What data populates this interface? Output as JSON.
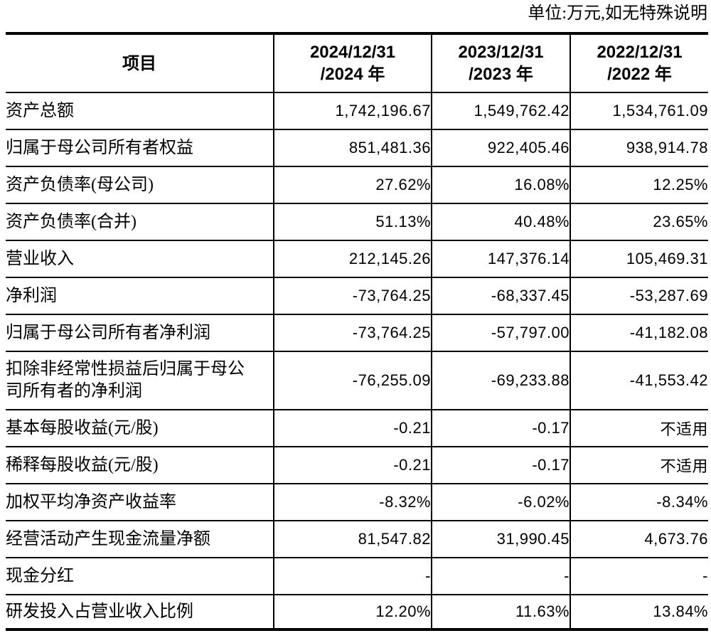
{
  "unit_note": "单位:万元,如无特殊说明",
  "header": {
    "item": "项目",
    "y2024": "2024/12/31\n/2024 年",
    "y2023": "2023/12/31\n/2023 年",
    "y2022": "2022/12/31\n/2022 年"
  },
  "rows": [
    {
      "label": "资产总额",
      "y2024": "1,742,196.67",
      "y2023": "1,549,762.42",
      "y2022": "1,534,761.09"
    },
    {
      "label": "归属于母公司所有者权益",
      "y2024": "851,481.36",
      "y2023": "922,405.46",
      "y2022": "938,914.78"
    },
    {
      "label": "资产负债率(母公司)",
      "y2024": "27.62%",
      "y2023": "16.08%",
      "y2022": "12.25%"
    },
    {
      "label": "资产负债率(合并)",
      "y2024": "51.13%",
      "y2023": "40.48%",
      "y2022": "23.65%"
    },
    {
      "label": "营业收入",
      "y2024": "212,145.26",
      "y2023": "147,376.14",
      "y2022": "105,469.31"
    },
    {
      "label": "净利润",
      "y2024": "-73,764.25",
      "y2023": "-68,337.45",
      "y2022": "-53,287.69"
    },
    {
      "label": "归属于母公司所有者净利润",
      "y2024": "-73,764.25",
      "y2023": "-57,797.00",
      "y2022": "-41,182.08"
    },
    {
      "label": "扣除非经常性损益后归属于母公\n司所有者的净利润",
      "y2024": "-76,255.09",
      "y2023": "-69,233.88",
      "y2022": "-41,553.42"
    },
    {
      "label": "基本每股收益(元/股)",
      "y2024": "-0.21",
      "y2023": "-0.17",
      "y2022": "不适用"
    },
    {
      "label": "稀释每股收益(元/股)",
      "y2024": "-0.21",
      "y2023": "-0.17",
      "y2022": "不适用"
    },
    {
      "label": "加权平均净资产收益率",
      "y2024": "-8.32%",
      "y2023": "-6.02%",
      "y2022": "-8.34%"
    },
    {
      "label": "经营活动产生现金流量净额",
      "y2024": "81,547.82",
      "y2023": "31,990.45",
      "y2022": "4,673.76"
    },
    {
      "label": "现金分红",
      "y2024": "-",
      "y2023": "-",
      "y2022": "-"
    },
    {
      "label": "研发投入占营业收入比例",
      "y2024": "12.20%",
      "y2023": "11.63%",
      "y2022": "13.84%"
    }
  ]
}
